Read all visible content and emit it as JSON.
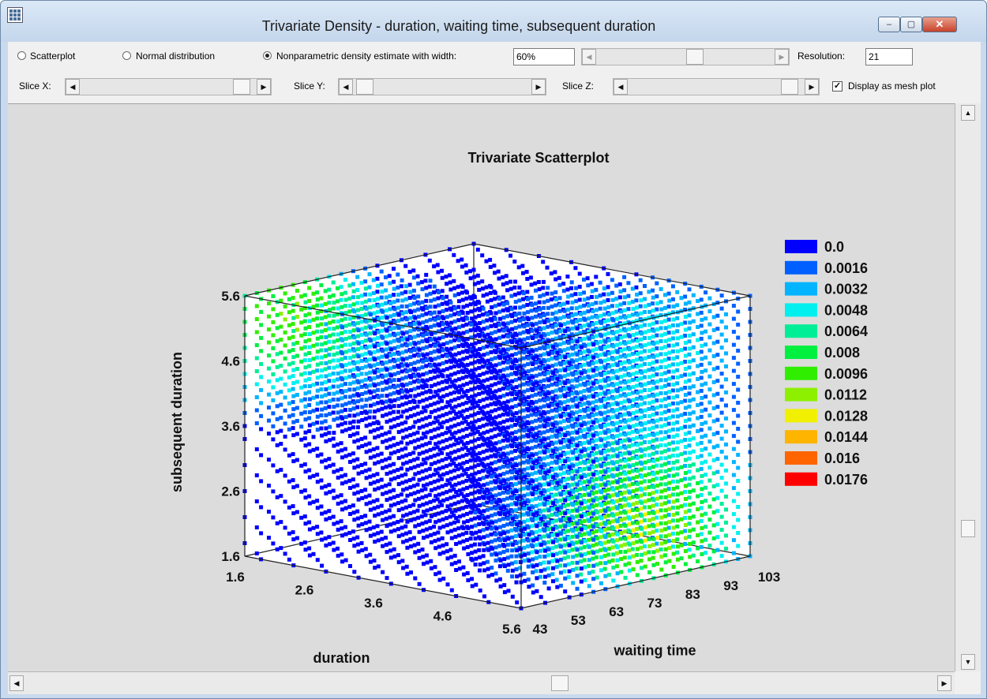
{
  "window": {
    "title": "Trivariate Density - duration, waiting time, subsequent duration",
    "minimize_glyph": "–",
    "maximize_glyph": "▢",
    "close_glyph": "✕"
  },
  "controls": {
    "mode_options": [
      {
        "label": "Scatterplot",
        "selected": false
      },
      {
        "label": "Normal distribution",
        "selected": false
      },
      {
        "label": "Nonparametric density estimate with width:",
        "selected": true
      }
    ],
    "width_value": "60%",
    "resolution_label": "Resolution:",
    "resolution_value": "21",
    "slice_x_label": "Slice X:",
    "slice_y_label": "Slice Y:",
    "slice_z_label": "Slice Z:",
    "mesh_label": "Display as mesh plot",
    "mesh_checked": true
  },
  "icons": {
    "left_arrow": "◀",
    "right_arrow": "▶",
    "up_arrow": "▲",
    "down_arrow": "▼",
    "check": "✓"
  },
  "chart_data": {
    "type": "scatter",
    "title": "Trivariate Scatterplot",
    "x_axis": {
      "label": "duration",
      "ticks": [
        "1.6",
        "2.6",
        "3.6",
        "4.6",
        "5.6"
      ],
      "range": [
        1.6,
        5.6
      ]
    },
    "y_axis": {
      "label": "waiting time",
      "ticks": [
        "43",
        "53",
        "63",
        "73",
        "83",
        "93",
        "103"
      ],
      "range": [
        43,
        103
      ]
    },
    "z_axis": {
      "label": "subsequent duration",
      "ticks": [
        "1.6",
        "2.6",
        "3.6",
        "4.6",
        "5.6"
      ],
      "range": [
        1.6,
        5.6
      ]
    },
    "legend": {
      "placement": "right",
      "entries": [
        {
          "label": "0.0",
          "color": "#0000ff"
        },
        {
          "label": "0.0016",
          "color": "#0060ff"
        },
        {
          "label": "0.0032",
          "color": "#00b4ff"
        },
        {
          "label": "0.0048",
          "color": "#00f0f0"
        },
        {
          "label": "0.0064",
          "color": "#00ee96"
        },
        {
          "label": "0.008",
          "color": "#00f040"
        },
        {
          "label": "0.0096",
          "color": "#30ee00"
        },
        {
          "label": "0.0112",
          "color": "#8cf000"
        },
        {
          "label": "0.0128",
          "color": "#f0f000"
        },
        {
          "label": "0.0144",
          "color": "#ffb400"
        },
        {
          "label": "0.016",
          "color": "#ff6400"
        },
        {
          "label": "0.0176",
          "color": "#ff0000"
        }
      ]
    },
    "grid_resolution": 21
  }
}
